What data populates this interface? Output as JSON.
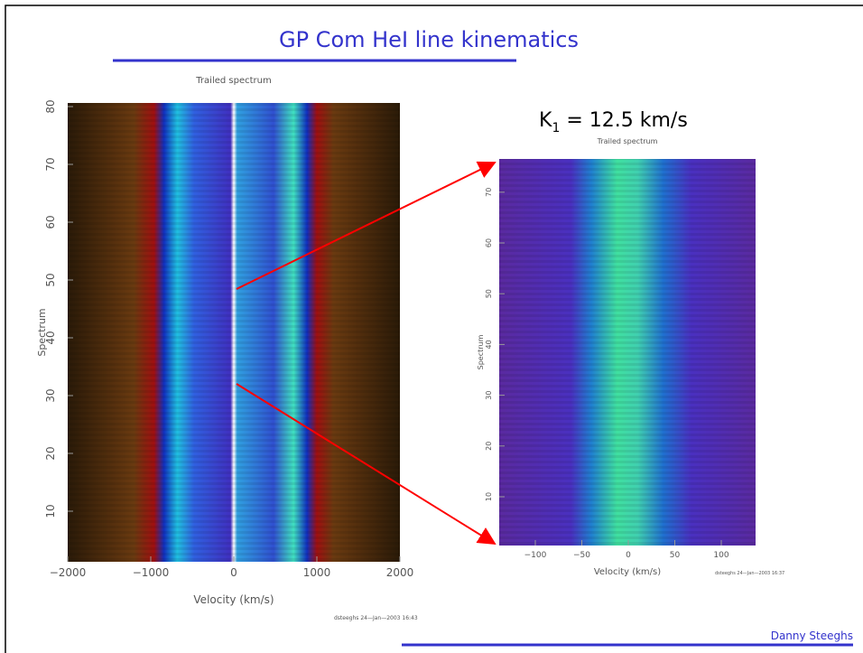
{
  "title": "GP Com HeI line kinematics",
  "left_panel": {
    "title": "Trailed spectrum",
    "x_label": "Velocity (km/s)",
    "y_label": "Spectrum",
    "x_ticks": [
      "−2000",
      "−1000",
      "0",
      "1000",
      "2000"
    ],
    "y_ticks": [
      "10",
      "20",
      "30",
      "40",
      "50",
      "60",
      "70",
      "80"
    ],
    "stamp": "dsteeghs 24—Jan—2003 16:43"
  },
  "annotation": {
    "symbol": "K",
    "subscript": "1",
    "text": " = 12.5 km/s"
  },
  "right_panel": {
    "title": "Trailed spectrum",
    "x_label": "Velocity (km/s)",
    "y_label": "Spectrum",
    "x_ticks": [
      "−100",
      "−50",
      "0",
      "50",
      "100"
    ],
    "y_ticks": [
      "10",
      "20",
      "30",
      "40",
      "50",
      "60",
      "70"
    ],
    "stamp": "dsteeghs 24—Jan—2003 16:37"
  },
  "footer": "Danny Steeghs"
}
